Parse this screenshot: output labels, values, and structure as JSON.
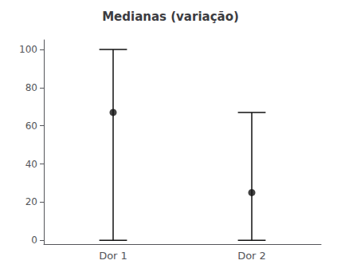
{
  "chart_data": {
    "type": "errorbar",
    "title": "Medianas (variação)",
    "categories": [
      "Dor 1",
      "Dor 2"
    ],
    "values": [
      67,
      25
    ],
    "lower": [
      0,
      0
    ],
    "upper": [
      100,
      67
    ],
    "color": "#111111",
    "ylim": [
      -2,
      105
    ],
    "yticks": [
      0,
      20,
      40,
      60,
      80,
      100
    ],
    "grid": false
  }
}
